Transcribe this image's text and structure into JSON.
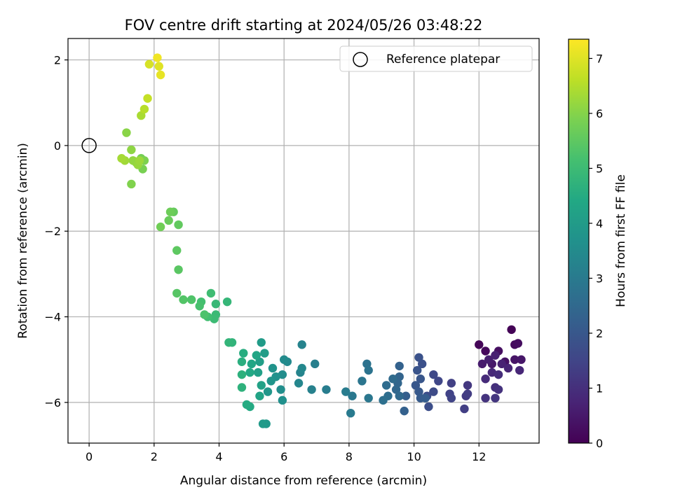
{
  "chart_data": {
    "type": "scatter",
    "title": "FOV centre drift starting at 2024/05/26 03:48:22",
    "xlabel": "Angular distance from reference (arcmin)",
    "ylabel": "Rotation from reference (arcmin)",
    "colorbar_label": "Hours from first FF file",
    "xlim": [
      -0.65,
      13.85
    ],
    "ylim": [
      -6.95,
      2.5
    ],
    "clim": [
      0,
      7.35
    ],
    "xticks": [
      0,
      2,
      4,
      6,
      8,
      10,
      12
    ],
    "yticks": [
      -6,
      -4,
      -2,
      0,
      2
    ],
    "cticks": [
      0,
      1,
      2,
      3,
      4,
      5,
      6,
      7
    ],
    "grid": true,
    "colormap": "viridis",
    "legend": {
      "placement": "upper right",
      "entries": [
        "Reference platepar"
      ]
    },
    "reference_point": {
      "x": 0,
      "y": 0
    },
    "points": [
      [
        13.0,
        -4.3,
        0.05
      ],
      [
        12.0,
        -4.65,
        0.1
      ],
      [
        12.2,
        -4.8,
        0.15
      ],
      [
        13.1,
        -4.65,
        0.2
      ],
      [
        13.2,
        -4.62,
        0.25
      ],
      [
        12.6,
        -4.8,
        0.3
      ],
      [
        12.8,
        -5.05,
        0.35
      ],
      [
        13.1,
        -5.0,
        0.4
      ],
      [
        13.3,
        -5.0,
        0.45
      ],
      [
        12.4,
        -5.1,
        0.5
      ],
      [
        12.1,
        -5.1,
        0.55
      ],
      [
        12.3,
        -5.0,
        0.6
      ],
      [
        12.5,
        -4.9,
        0.65
      ],
      [
        12.7,
        -5.1,
        0.7
      ],
      [
        12.9,
        -5.2,
        0.75
      ],
      [
        13.25,
        -5.25,
        0.8
      ],
      [
        12.4,
        -5.3,
        0.85
      ],
      [
        12.2,
        -5.45,
        0.9
      ],
      [
        12.6,
        -5.35,
        0.95
      ],
      [
        12.5,
        -5.65,
        1.0
      ],
      [
        12.6,
        -5.7,
        1.05
      ],
      [
        12.2,
        -5.9,
        1.1
      ],
      [
        12.5,
        -5.9,
        1.15
      ],
      [
        11.65,
        -5.6,
        1.2
      ],
      [
        11.6,
        -5.85,
        1.25
      ],
      [
        11.65,
        -5.8,
        1.3
      ],
      [
        11.55,
        -6.15,
        1.35
      ],
      [
        11.15,
        -5.55,
        1.4
      ],
      [
        11.1,
        -5.8,
        1.45
      ],
      [
        11.15,
        -5.9,
        1.5
      ],
      [
        10.75,
        -5.5,
        1.55
      ],
      [
        10.6,
        -5.35,
        1.6
      ],
      [
        10.6,
        -5.75,
        1.65
      ],
      [
        10.4,
        -5.85,
        1.7
      ],
      [
        10.45,
        -6.1,
        1.75
      ],
      [
        10.25,
        -5.1,
        1.8
      ],
      [
        10.15,
        -4.95,
        1.85
      ],
      [
        10.1,
        -5.25,
        1.9
      ],
      [
        10.2,
        -5.45,
        1.95
      ],
      [
        10.05,
        -5.6,
        2.0
      ],
      [
        10.15,
        -5.75,
        2.05
      ],
      [
        10.2,
        -5.9,
        2.1
      ],
      [
        10.35,
        -5.9,
        2.15
      ],
      [
        9.75,
        -5.85,
        2.2
      ],
      [
        9.7,
        -6.2,
        2.25
      ],
      [
        9.55,
        -5.15,
        2.3
      ],
      [
        9.55,
        -5.4,
        2.35
      ],
      [
        9.5,
        -5.55,
        2.4
      ],
      [
        9.45,
        -5.7,
        2.45
      ],
      [
        9.55,
        -5.85,
        2.5
      ],
      [
        9.35,
        -5.45,
        2.55
      ],
      [
        9.15,
        -5.6,
        2.6
      ],
      [
        9.2,
        -5.85,
        2.65
      ],
      [
        9.05,
        -5.95,
        2.7
      ],
      [
        8.55,
        -5.1,
        2.75
      ],
      [
        8.6,
        -5.25,
        2.8
      ],
      [
        8.4,
        -5.5,
        2.85
      ],
      [
        8.6,
        -5.9,
        2.9
      ],
      [
        8.1,
        -5.85,
        2.95
      ],
      [
        8.05,
        -6.25,
        3.0
      ],
      [
        7.9,
        -5.75,
        3.05
      ],
      [
        7.3,
        -5.7,
        3.1
      ],
      [
        6.95,
        -5.1,
        3.15
      ],
      [
        6.85,
        -5.7,
        3.2
      ],
      [
        6.55,
        -4.65,
        3.25
      ],
      [
        6.5,
        -5.3,
        3.3
      ],
      [
        6.45,
        -5.55,
        3.35
      ],
      [
        6.55,
        -5.2,
        3.4
      ],
      [
        6.1,
        -5.05,
        3.45
      ],
      [
        6.0,
        -5.0,
        3.5
      ],
      [
        5.95,
        -5.35,
        3.55
      ],
      [
        5.9,
        -5.7,
        3.6
      ],
      [
        5.95,
        -5.95,
        3.65
      ],
      [
        5.75,
        -5.4,
        3.7
      ],
      [
        5.65,
        -5.2,
        3.75
      ],
      [
        5.6,
        -5.5,
        3.8
      ],
      [
        5.5,
        -5.75,
        3.85
      ],
      [
        5.45,
        -6.5,
        3.9
      ],
      [
        5.35,
        -6.5,
        3.95
      ],
      [
        5.3,
        -4.6,
        4.0
      ],
      [
        5.4,
        -4.85,
        4.05
      ],
      [
        5.25,
        -5.05,
        4.1
      ],
      [
        5.2,
        -5.3,
        4.15
      ],
      [
        5.3,
        -5.6,
        4.2
      ],
      [
        5.25,
        -5.85,
        4.25
      ],
      [
        5.15,
        -4.9,
        4.3
      ],
      [
        5.0,
        -5.1,
        4.35
      ],
      [
        4.95,
        -5.3,
        4.4
      ],
      [
        4.95,
        -6.1,
        4.45
      ],
      [
        4.85,
        -6.05,
        4.5
      ],
      [
        4.75,
        -4.85,
        4.55
      ],
      [
        4.7,
        -5.05,
        4.6
      ],
      [
        4.7,
        -5.35,
        4.65
      ],
      [
        4.7,
        -5.65,
        4.7
      ],
      [
        4.4,
        -4.6,
        4.75
      ],
      [
        4.3,
        -4.6,
        4.8
      ],
      [
        4.25,
        -3.65,
        4.85
      ],
      [
        3.9,
        -3.7,
        4.9
      ],
      [
        3.9,
        -3.95,
        4.95
      ],
      [
        3.85,
        -4.05,
        5.0
      ],
      [
        3.75,
        -3.45,
        5.05
      ],
      [
        3.65,
        -4.0,
        5.1
      ],
      [
        3.45,
        -3.65,
        5.15
      ],
      [
        3.4,
        -3.75,
        5.2
      ],
      [
        3.55,
        -3.95,
        5.25
      ],
      [
        3.15,
        -3.6,
        5.3
      ],
      [
        2.9,
        -3.6,
        5.35
      ],
      [
        2.7,
        -3.45,
        5.4
      ],
      [
        2.75,
        -2.9,
        5.45
      ],
      [
        2.7,
        -2.45,
        5.5
      ],
      [
        2.75,
        -1.85,
        5.55
      ],
      [
        2.6,
        -1.55,
        5.6
      ],
      [
        2.45,
        -1.75,
        5.65
      ],
      [
        2.5,
        -1.55,
        5.7
      ],
      [
        2.2,
        -1.9,
        5.75
      ],
      [
        1.6,
        -0.3,
        5.8
      ],
      [
        1.65,
        -0.55,
        5.85
      ],
      [
        1.7,
        -0.35,
        5.9
      ],
      [
        1.3,
        -0.9,
        5.95
      ],
      [
        1.45,
        -0.4,
        6.0
      ],
      [
        1.15,
        0.3,
        6.05
      ],
      [
        1.3,
        -0.1,
        6.1
      ],
      [
        1.35,
        -0.35,
        6.15
      ],
      [
        1.5,
        -0.45,
        6.2
      ],
      [
        1.55,
        -0.35,
        6.25
      ],
      [
        1.1,
        -0.35,
        6.3
      ],
      [
        1.0,
        -0.3,
        6.35
      ],
      [
        1.6,
        0.7,
        6.4
      ],
      [
        1.7,
        0.85,
        6.55
      ],
      [
        1.8,
        1.1,
        6.7
      ],
      [
        1.85,
        1.9,
        6.9
      ],
      [
        2.15,
        1.85,
        7.0
      ],
      [
        2.2,
        1.65,
        7.1
      ],
      [
        2.1,
        2.05,
        7.2
      ]
    ]
  }
}
